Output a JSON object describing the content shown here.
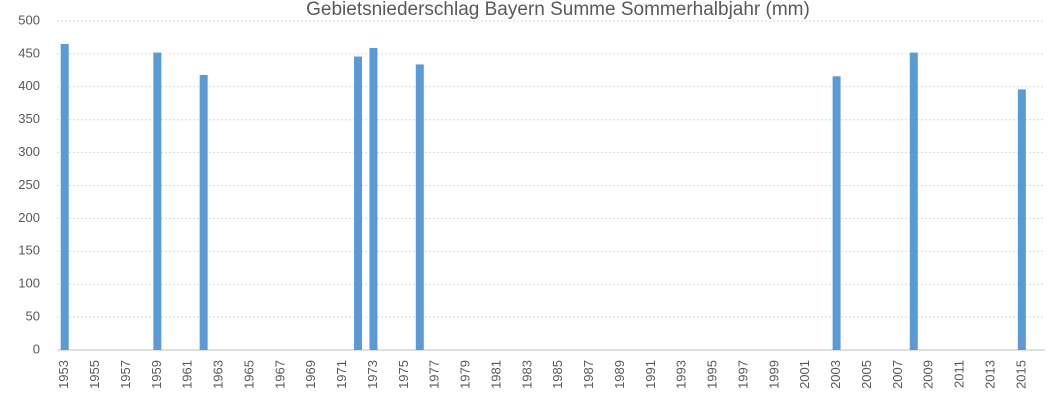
{
  "chart_data": {
    "type": "bar",
    "title": "Gebietsniederschlag Bayern Summe Sommerhalbjahr (mm)",
    "categories": [
      "1953",
      null,
      "1955",
      null,
      "1957",
      null,
      "1959",
      null,
      "1961",
      null,
      "1963",
      null,
      "1965",
      null,
      "1967",
      null,
      "1969",
      null,
      "1971",
      null,
      "1973",
      null,
      "1975",
      null,
      "1977",
      null,
      "1979",
      null,
      "1981",
      null,
      "1983",
      null,
      "1985",
      null,
      "1987",
      null,
      "1989",
      null,
      "1991",
      null,
      "1993",
      null,
      "1995",
      null,
      "1997",
      null,
      "1999",
      null,
      "2001",
      null,
      "2003",
      null,
      "2005",
      null,
      "2007",
      null,
      "2009",
      null,
      "2011",
      null,
      "2013",
      null,
      "2015",
      null
    ],
    "values": [
      465,
      null,
      null,
      null,
      null,
      null,
      452,
      null,
      null,
      418,
      null,
      null,
      null,
      null,
      null,
      null,
      null,
      null,
      null,
      446,
      459,
      null,
      null,
      434,
      null,
      null,
      null,
      null,
      null,
      null,
      null,
      null,
      null,
      null,
      null,
      null,
      null,
      null,
      null,
      null,
      null,
      null,
      null,
      null,
      null,
      null,
      null,
      null,
      null,
      null,
      416,
      null,
      null,
      null,
      null,
      452,
      null,
      null,
      null,
      null,
      null,
      null,
      396,
      null
    ],
    "color": "#5b9bd5",
    "ylim": [
      0,
      500
    ],
    "yticks": [
      0,
      50,
      100,
      150,
      200,
      250,
      300,
      350,
      400,
      450,
      500
    ],
    "grid": true
  }
}
